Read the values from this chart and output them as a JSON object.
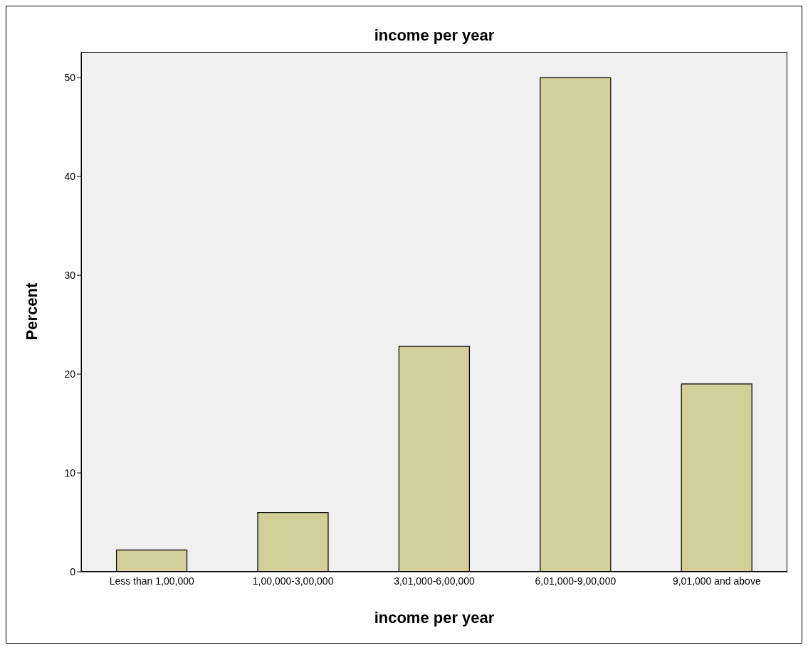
{
  "chart_data": {
    "type": "bar",
    "title": "income per year",
    "xlabel": "income per year",
    "ylabel": "Percent",
    "categories": [
      "Less than 1,00,000",
      "1,00,000-3,00,000",
      "3,01,000-6,00,000",
      "6,01,000-9,00,000",
      "9,01,000 and above"
    ],
    "values": [
      2.2,
      6.0,
      22.8,
      50.0,
      19.0
    ],
    "color": "#d3cf98",
    "ylim": [
      0,
      52.6
    ],
    "yticks": [
      0,
      10,
      20,
      30,
      40,
      50
    ],
    "grid": false
  }
}
